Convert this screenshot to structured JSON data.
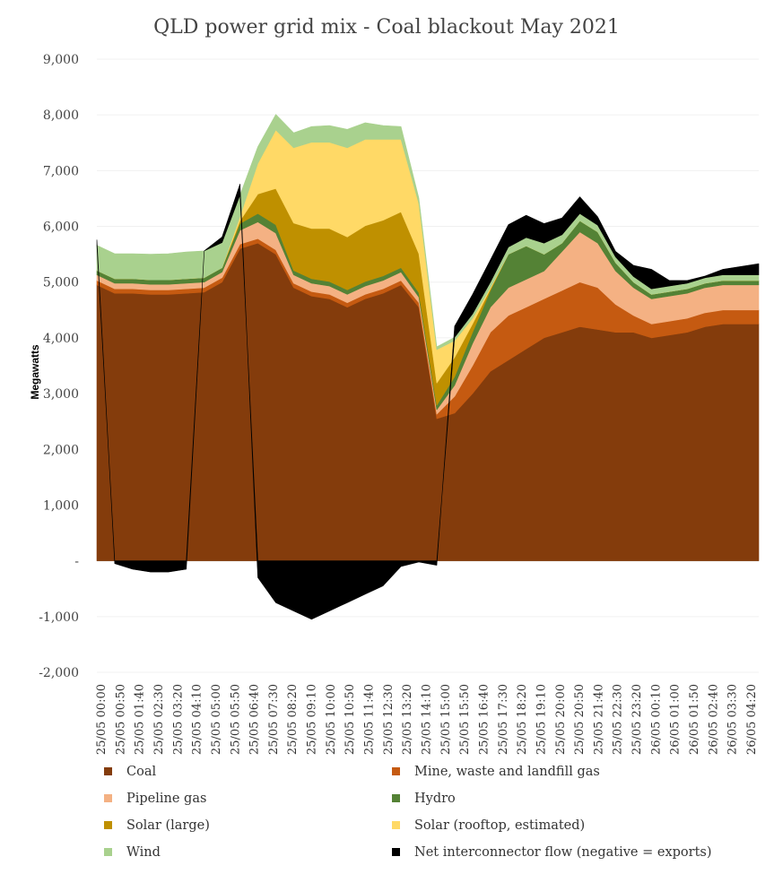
{
  "chart_data": {
    "type": "area",
    "title": "QLD power grid mix - Coal blackout May 2021",
    "xlabel": "",
    "ylabel": "Megawatts",
    "ylim": [
      -2000,
      9000
    ],
    "yticks": [
      -2000,
      -1000,
      0,
      1000,
      2000,
      3000,
      4000,
      5000,
      6000,
      7000,
      8000,
      9000
    ],
    "ytick_labels": [
      "-2,000",
      "-1,000",
      "-",
      "1,000",
      "2,000",
      "3,000",
      "4,000",
      "5,000",
      "6,000",
      "7,000",
      "8,000",
      "9,000"
    ],
    "stacked": true,
    "x_tick_labels": [
      "25/05 00:00",
      "25/05 00:50",
      "25/05 01:40",
      "25/05 02:30",
      "25/05 03:20",
      "25/05 04:10",
      "25/05 05:00",
      "25/05 05:50",
      "25/05 06:40",
      "25/05 07:30",
      "25/05 08:20",
      "25/05 09:10",
      "25/05 10:00",
      "25/05 10:50",
      "25/05 11:40",
      "25/05 12:30",
      "25/05 13:20",
      "25/05 14:10",
      "25/05 15:00",
      "25/05 15:50",
      "25/05 16:40",
      "25/05 17:30",
      "25/05 18:20",
      "25/05 19:10",
      "25/05 20:00",
      "25/05 20:50",
      "25/05 21:40",
      "25/05 22:30",
      "25/05 23:20",
      "26/05 00:10",
      "26/05 01:00",
      "26/05 01:50",
      "26/05 02:40",
      "26/05 03:30",
      "26/05 04:20"
    ],
    "x": [
      "25/05 00:00",
      "25/05 00:50",
      "25/05 01:40",
      "25/05 02:30",
      "25/05 03:20",
      "25/05 04:10",
      "25/05 05:00",
      "25/05 05:50",
      "25/05 06:40",
      "25/05 07:30",
      "25/05 08:20",
      "25/05 09:10",
      "25/05 10:00",
      "25/05 10:50",
      "25/05 11:40",
      "25/05 12:30",
      "25/05 13:20",
      "25/05 13:45",
      "25/05 14:00",
      "25/05 14:10",
      "25/05 15:00",
      "25/05 15:50",
      "25/05 16:40",
      "25/05 17:30",
      "25/05 18:20",
      "25/05 19:10",
      "25/05 20:00",
      "25/05 20:50",
      "25/05 21:40",
      "25/05 22:30",
      "25/05 23:20",
      "26/05 00:10",
      "26/05 01:00",
      "26/05 01:50",
      "26/05 02:40",
      "26/05 03:30",
      "26/05 04:20",
      "26/05 04:50"
    ],
    "series": [
      {
        "name": "Coal",
        "color": "#843c0c",
        "values": [
          4950,
          4800,
          4800,
          4780,
          4780,
          4800,
          4820,
          5000,
          5600,
          5700,
          5500,
          4900,
          4750,
          4700,
          4550,
          4700,
          4800,
          4950,
          4550,
          2550,
          2650,
          3000,
          3400,
          3600,
          3800,
          4000,
          4100,
          4200,
          4150,
          4100,
          4100,
          4000,
          4050,
          4100,
          4200,
          4250,
          4250,
          4250
        ]
      },
      {
        "name": "Mine, waste and landfill gas",
        "color": "#c55a11",
        "values": [
          80,
          80,
          80,
          80,
          80,
          80,
          80,
          80,
          80,
          80,
          80,
          80,
          80,
          80,
          80,
          80,
          80,
          80,
          80,
          80,
          300,
          500,
          700,
          800,
          750,
          700,
          750,
          800,
          750,
          500,
          300,
          250,
          250,
          250,
          250,
          250,
          250,
          250
        ]
      },
      {
        "name": "Pipeline gas",
        "color": "#f4b183",
        "values": [
          100,
          100,
          100,
          100,
          100,
          100,
          100,
          100,
          250,
          300,
          300,
          150,
          150,
          150,
          150,
          150,
          150,
          150,
          100,
          80,
          200,
          400,
          450,
          500,
          500,
          500,
          700,
          900,
          800,
          600,
          500,
          450,
          450,
          450,
          450,
          450,
          450,
          450
        ]
      },
      {
        "name": "Hydro",
        "color": "#548235",
        "values": [
          80,
          80,
          80,
          80,
          80,
          80,
          80,
          80,
          120,
          150,
          150,
          80,
          80,
          80,
          80,
          80,
          80,
          80,
          80,
          80,
          150,
          200,
          300,
          600,
          600,
          300,
          150,
          200,
          200,
          150,
          100,
          80,
          80,
          80,
          80,
          80,
          80,
          80
        ]
      },
      {
        "name": "Solar (large)",
        "color": "#bf9000",
        "values": [
          0,
          0,
          0,
          0,
          0,
          0,
          0,
          0,
          50,
          350,
          650,
          850,
          900,
          950,
          950,
          1000,
          1000,
          1000,
          700,
          400,
          350,
          150,
          30,
          0,
          0,
          0,
          0,
          0,
          0,
          0,
          0,
          0,
          0,
          0,
          0,
          0,
          0,
          0
        ]
      },
      {
        "name": "Solar (rooftop, estimated)",
        "color": "#ffd966",
        "values": [
          0,
          0,
          0,
          0,
          0,
          0,
          0,
          0,
          80,
          550,
          1050,
          1350,
          1550,
          1550,
          1600,
          1550,
          1450,
          1300,
          900,
          600,
          300,
          100,
          20,
          0,
          0,
          0,
          0,
          0,
          0,
          0,
          0,
          0,
          0,
          0,
          0,
          0,
          0,
          0
        ]
      },
      {
        "name": "Wind",
        "color": "#a9d18e",
        "values": [
          450,
          450,
          450,
          460,
          470,
          480,
          480,
          450,
          380,
          300,
          280,
          270,
          280,
          300,
          330,
          300,
          250,
          230,
          100,
          50,
          60,
          80,
          100,
          130,
          150,
          200,
          150,
          130,
          120,
          100,
          100,
          100,
          100,
          100,
          100,
          100,
          100,
          100
        ]
      },
      {
        "name": "Net interconnector flow (negative = exports)",
        "color": "#000000",
        "values": [
          100,
          -50,
          -150,
          -200,
          -200,
          -150,
          0,
          100,
          200,
          -300,
          -750,
          -900,
          -1050,
          -900,
          -750,
          -600,
          -450,
          -100,
          -20,
          -80,
          200,
          350,
          400,
          400,
          400,
          350,
          300,
          300,
          150,
          100,
          200,
          350,
          100,
          50,
          30,
          100,
          150,
          200
        ]
      }
    ]
  },
  "legend": {
    "items": [
      {
        "label": "Coal",
        "color": "#843c0c"
      },
      {
        "label": "Mine, waste and landfill gas",
        "color": "#c55a11"
      },
      {
        "label": "Pipeline gas",
        "color": "#f4b183"
      },
      {
        "label": "Hydro",
        "color": "#548235"
      },
      {
        "label": "Solar (large)",
        "color": "#bf9000"
      },
      {
        "label": "Solar (rooftop, estimated)",
        "color": "#ffd966"
      },
      {
        "label": "Wind",
        "color": "#a9d18e"
      },
      {
        "label": "Net interconnector flow (negative = exports)",
        "color": "#000000"
      }
    ]
  }
}
